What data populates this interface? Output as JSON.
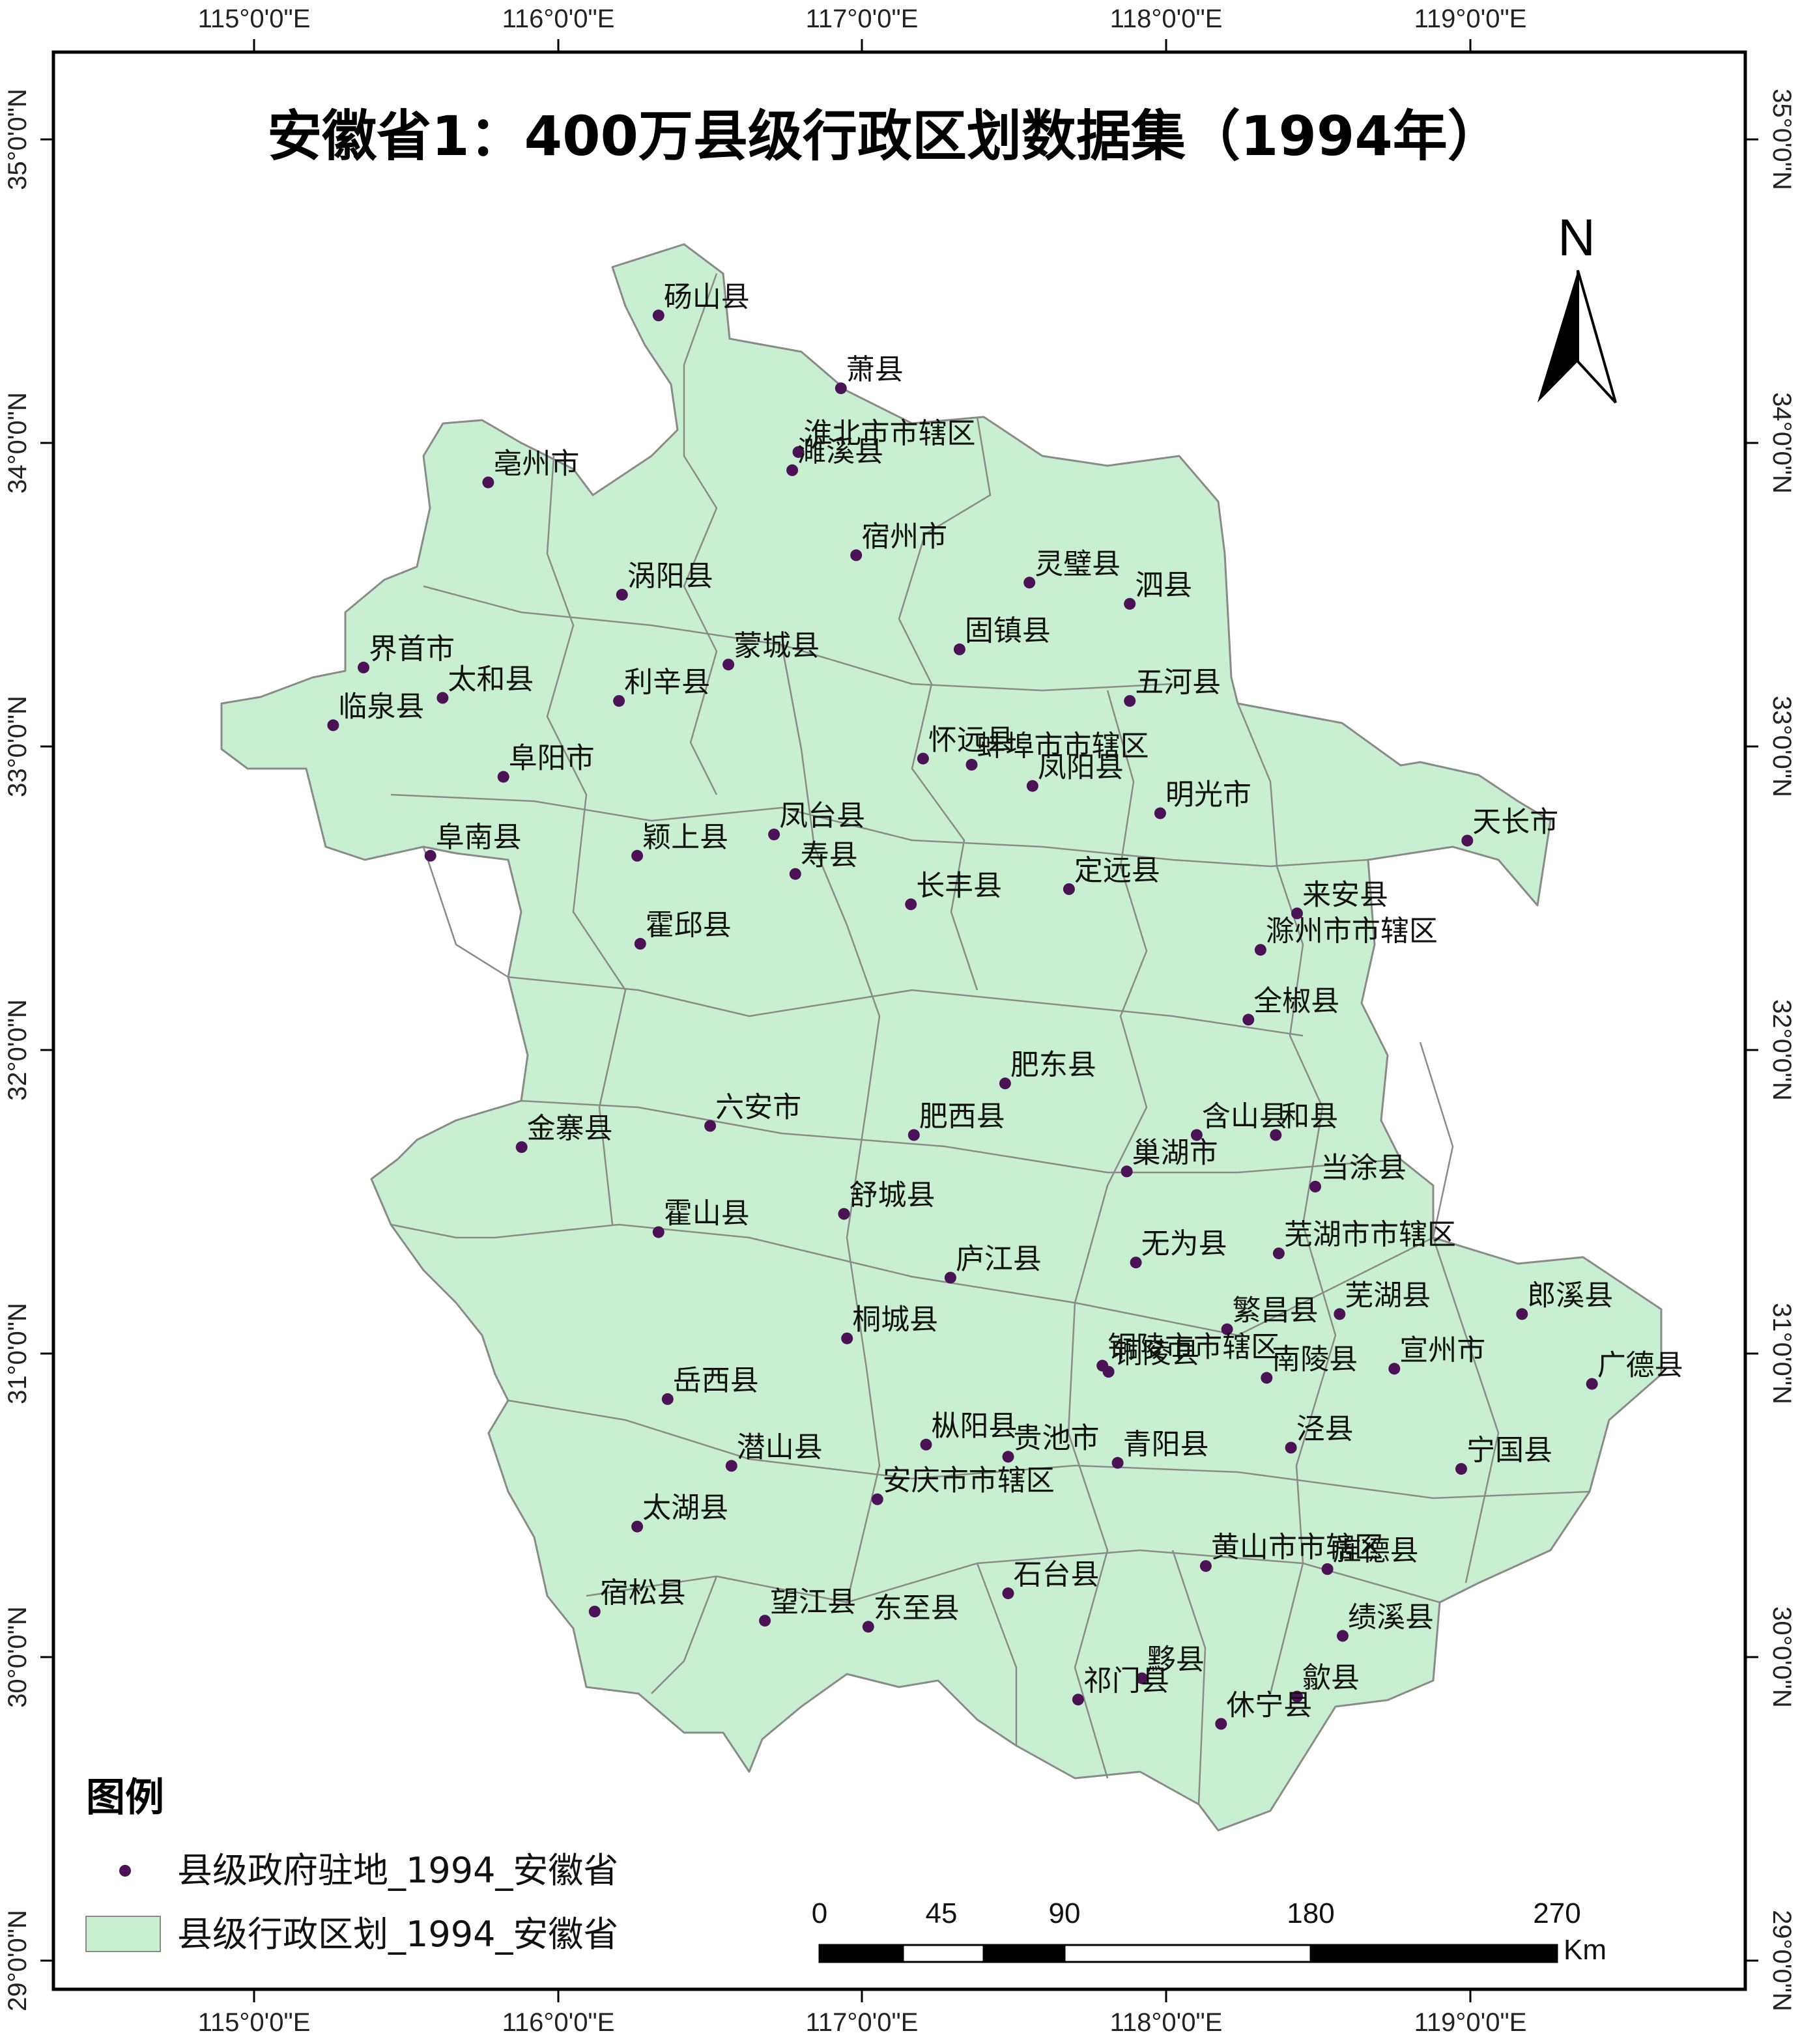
{
  "title": "安徽省1：400万县级行政区划数据集（1994年）",
  "graticule": {
    "lon_labels": [
      "115°0'0\"E",
      "116°0'0\"E",
      "117°0'0\"E",
      "118°0'0\"E",
      "119°0'0\"E"
    ],
    "lat_labels": [
      "35°0'0\"N",
      "34°0'0\"N",
      "33°0'0\"N",
      "32°0'0\"N",
      "31°0'0\"N",
      "30°0'0\"N",
      "29°0'0\"N"
    ]
  },
  "north_arrow": {
    "label": "N"
  },
  "legend": {
    "title": "图例",
    "items": [
      {
        "label": "县级政府驻地_1994_安徽省",
        "symbol": "point",
        "color": "#4b1356"
      },
      {
        "label": "县级行政区划_1994_安徽省",
        "symbol": "polygon",
        "color": "#c8efd0"
      }
    ]
  },
  "scale_bar": {
    "labels": [
      "0",
      "45",
      "90",
      "180",
      "270"
    ],
    "unit": "Km"
  },
  "colors": {
    "polygon_fill": "#c8efd0",
    "polygon_stroke": "#8a8a8a",
    "point": "#4b1356",
    "frame": "#000000"
  },
  "places": [
    {
      "name": "砀山县",
      "lon": 116.33,
      "lat": 34.42
    },
    {
      "name": "萧县",
      "lon": 116.93,
      "lat": 34.18
    },
    {
      "name": "淮北市市辖区",
      "lon": 116.79,
      "lat": 33.97
    },
    {
      "name": "濉溪县",
      "lon": 116.77,
      "lat": 33.91
    },
    {
      "name": "亳州市",
      "lon": 115.77,
      "lat": 33.87
    },
    {
      "name": "宿州市",
      "lon": 116.98,
      "lat": 33.63
    },
    {
      "name": "灵璧县",
      "lon": 117.55,
      "lat": 33.54
    },
    {
      "name": "泗县",
      "lon": 117.88,
      "lat": 33.47
    },
    {
      "name": "涡阳县",
      "lon": 116.21,
      "lat": 33.5
    },
    {
      "name": "界首市",
      "lon": 115.36,
      "lat": 33.26
    },
    {
      "name": "太和县",
      "lon": 115.62,
      "lat": 33.16
    },
    {
      "name": "临泉县",
      "lon": 115.26,
      "lat": 33.07
    },
    {
      "name": "蒙城县",
      "lon": 116.56,
      "lat": 33.27
    },
    {
      "name": "固镇县",
      "lon": 117.32,
      "lat": 33.32
    },
    {
      "name": "利辛县",
      "lon": 116.2,
      "lat": 33.15
    },
    {
      "name": "五河县",
      "lon": 117.88,
      "lat": 33.15
    },
    {
      "name": "怀远县",
      "lon": 117.2,
      "lat": 32.96
    },
    {
      "name": "蚌埠市市辖区",
      "lon": 117.36,
      "lat": 32.94
    },
    {
      "name": "凤阳县",
      "lon": 117.56,
      "lat": 32.87
    },
    {
      "name": "阜阳市",
      "lon": 115.82,
      "lat": 32.9
    },
    {
      "name": "明光市",
      "lon": 117.98,
      "lat": 32.78
    },
    {
      "name": "天长市",
      "lon": 118.99,
      "lat": 32.69
    },
    {
      "name": "阜南县",
      "lon": 115.58,
      "lat": 32.64
    },
    {
      "name": "颖上县",
      "lon": 116.26,
      "lat": 32.64
    },
    {
      "name": "凤台县",
      "lon": 116.71,
      "lat": 32.71
    },
    {
      "name": "寿县",
      "lon": 116.78,
      "lat": 32.58
    },
    {
      "name": "长丰县",
      "lon": 117.16,
      "lat": 32.48
    },
    {
      "name": "定远县",
      "lon": 117.68,
      "lat": 32.53
    },
    {
      "name": "来安县",
      "lon": 118.43,
      "lat": 32.45
    },
    {
      "name": "滁州市市辖区",
      "lon": 118.31,
      "lat": 32.33
    },
    {
      "name": "霍邱县",
      "lon": 116.27,
      "lat": 32.35
    },
    {
      "name": "全椒县",
      "lon": 118.27,
      "lat": 32.1
    },
    {
      "name": "肥东县",
      "lon": 117.47,
      "lat": 31.89
    },
    {
      "name": "六安市",
      "lon": 116.5,
      "lat": 31.75
    },
    {
      "name": "金寨县",
      "lon": 115.88,
      "lat": 31.68
    },
    {
      "name": "肥西县",
      "lon": 117.17,
      "lat": 31.72
    },
    {
      "name": "含山县",
      "lon": 118.1,
      "lat": 31.72
    },
    {
      "name": "和县",
      "lon": 118.36,
      "lat": 31.72
    },
    {
      "name": "当涂县",
      "lon": 118.49,
      "lat": 31.55
    },
    {
      "name": "巢湖市",
      "lon": 117.87,
      "lat": 31.6
    },
    {
      "name": "舒城县",
      "lon": 116.94,
      "lat": 31.46
    },
    {
      "name": "霍山县",
      "lon": 116.33,
      "lat": 31.4
    },
    {
      "name": "无为县",
      "lon": 117.9,
      "lat": 31.3
    },
    {
      "name": "芜湖市市辖区",
      "lon": 118.37,
      "lat": 31.33
    },
    {
      "name": "庐江县",
      "lon": 117.29,
      "lat": 31.25
    },
    {
      "name": "芜湖县",
      "lon": 118.57,
      "lat": 31.13
    },
    {
      "name": "郎溪县",
      "lon": 119.17,
      "lat": 31.13
    },
    {
      "name": "繁昌县",
      "lon": 118.2,
      "lat": 31.08
    },
    {
      "name": "桐城县",
      "lon": 116.95,
      "lat": 31.05
    },
    {
      "name": "铜陵市市辖区",
      "lon": 117.79,
      "lat": 30.96
    },
    {
      "name": "铜陵县",
      "lon": 117.81,
      "lat": 30.94
    },
    {
      "name": "南陵县",
      "lon": 118.33,
      "lat": 30.92
    },
    {
      "name": "宣州市",
      "lon": 118.75,
      "lat": 30.95
    },
    {
      "name": "广德县",
      "lon": 119.4,
      "lat": 30.9
    },
    {
      "name": "岳西县",
      "lon": 116.36,
      "lat": 30.85
    },
    {
      "name": "潜山县",
      "lon": 116.57,
      "lat": 30.63
    },
    {
      "name": "枞阳县",
      "lon": 117.21,
      "lat": 30.7
    },
    {
      "name": "贵池市",
      "lon": 117.48,
      "lat": 30.66
    },
    {
      "name": "青阳县",
      "lon": 117.84,
      "lat": 30.64
    },
    {
      "name": "泾县",
      "lon": 118.41,
      "lat": 30.69
    },
    {
      "name": "宁国县",
      "lon": 118.97,
      "lat": 30.62
    },
    {
      "name": "太湖县",
      "lon": 116.26,
      "lat": 30.43
    },
    {
      "name": "安庆市市辖区",
      "lon": 117.05,
      "lat": 30.52
    },
    {
      "name": "黄山市市辖区",
      "lon": 118.13,
      "lat": 30.3
    },
    {
      "name": "旌德县",
      "lon": 118.53,
      "lat": 30.29
    },
    {
      "name": "石台县",
      "lon": 117.48,
      "lat": 30.21
    },
    {
      "name": "宿松县",
      "lon": 116.12,
      "lat": 30.15
    },
    {
      "name": "望江县",
      "lon": 116.68,
      "lat": 30.12
    },
    {
      "name": "东至县",
      "lon": 117.02,
      "lat": 30.1
    },
    {
      "name": "绩溪县",
      "lon": 118.58,
      "lat": 30.07
    },
    {
      "name": "黟县",
      "lon": 117.92,
      "lat": 29.93
    },
    {
      "name": "祁门县",
      "lon": 117.71,
      "lat": 29.86
    },
    {
      "name": "歙县",
      "lon": 118.43,
      "lat": 29.87
    },
    {
      "name": "休宁县",
      "lon": 118.18,
      "lat": 29.78
    }
  ]
}
